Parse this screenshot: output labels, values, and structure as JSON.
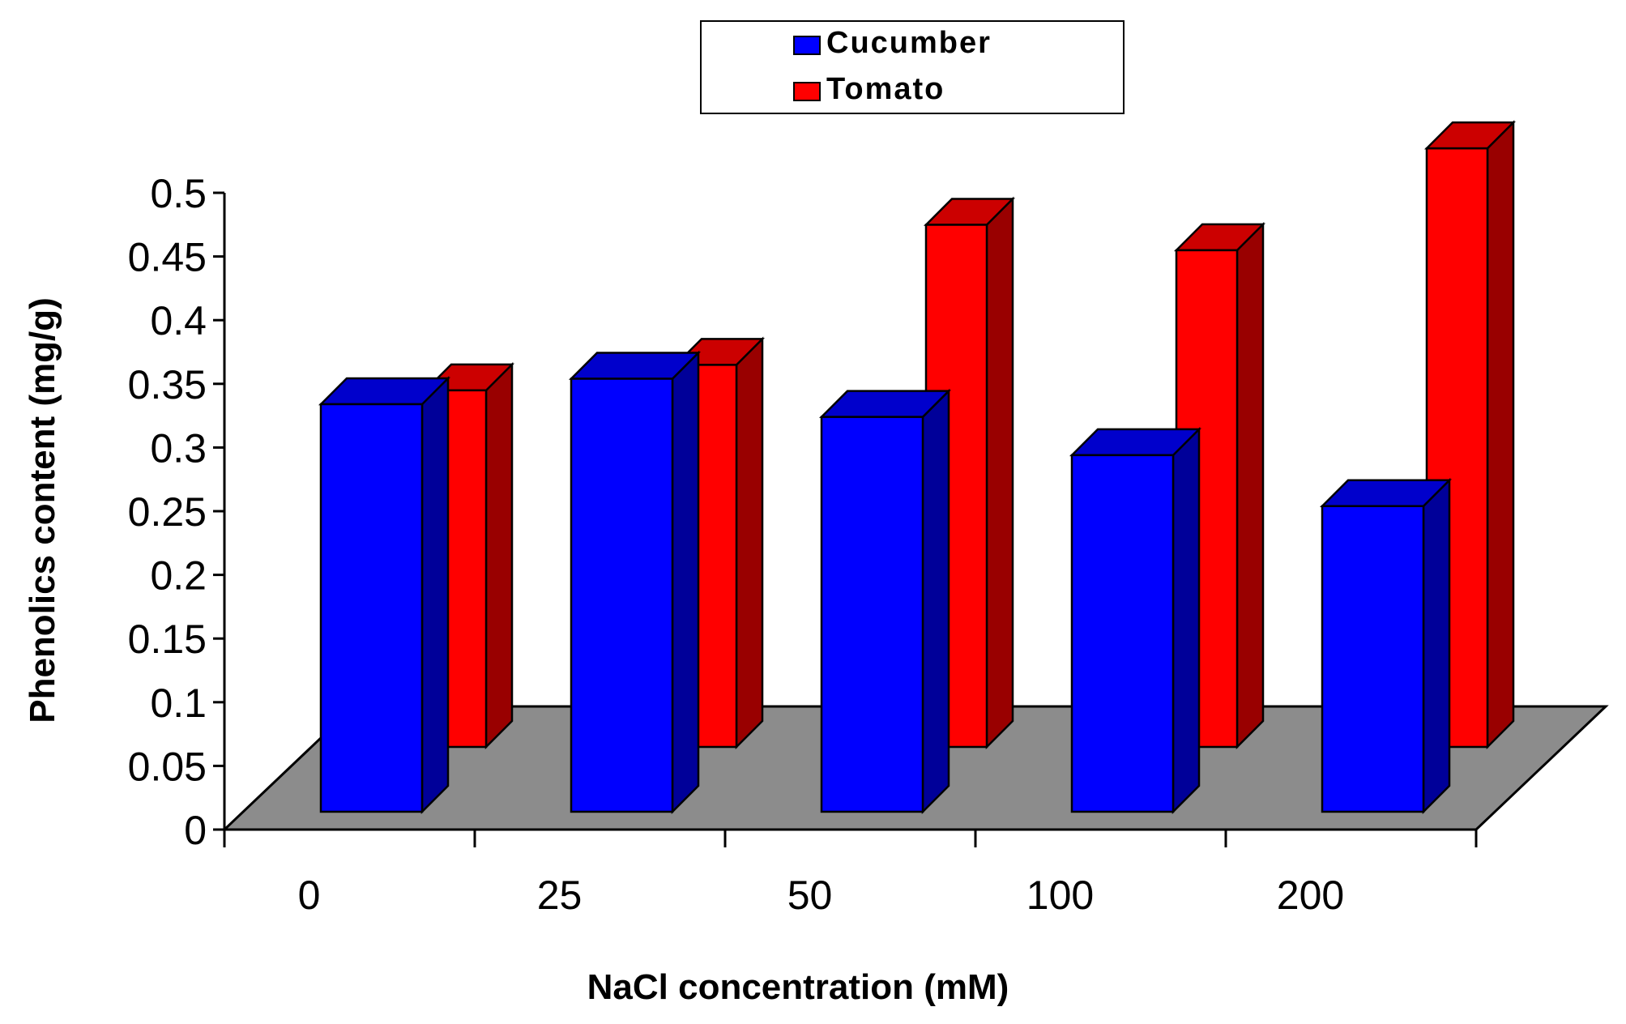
{
  "chart_data": {
    "type": "bar",
    "style": "3d-clustered",
    "categories": [
      "0",
      "25",
      "50",
      "100",
      "200"
    ],
    "series": [
      {
        "name": "Cucumber",
        "values": [
          0.32,
          0.34,
          0.31,
          0.28,
          0.24
        ]
      },
      {
        "name": "Tomato",
        "values": [
          0.28,
          0.3,
          0.41,
          0.39,
          0.47
        ]
      }
    ],
    "xlabel": "NaCl concentration (mM)",
    "ylabel": "Phenolics content (mg/g)",
    "ylim": [
      0,
      0.5
    ],
    "yticks": [
      "0",
      "0.05",
      "0.1",
      "0.15",
      "0.2",
      "0.25",
      "0.3",
      "0.35",
      "0.4",
      "0.45",
      "0.5"
    ],
    "legend_position": "top",
    "grid": false
  },
  "colors": {
    "cucumber_front": "#0000ff",
    "cucumber_side": "#000099",
    "cucumber_top": "#0000cc",
    "tomato_front": "#ff0000",
    "tomato_side": "#990000",
    "tomato_top": "#cc0000",
    "floor": "#8c8c8c"
  }
}
